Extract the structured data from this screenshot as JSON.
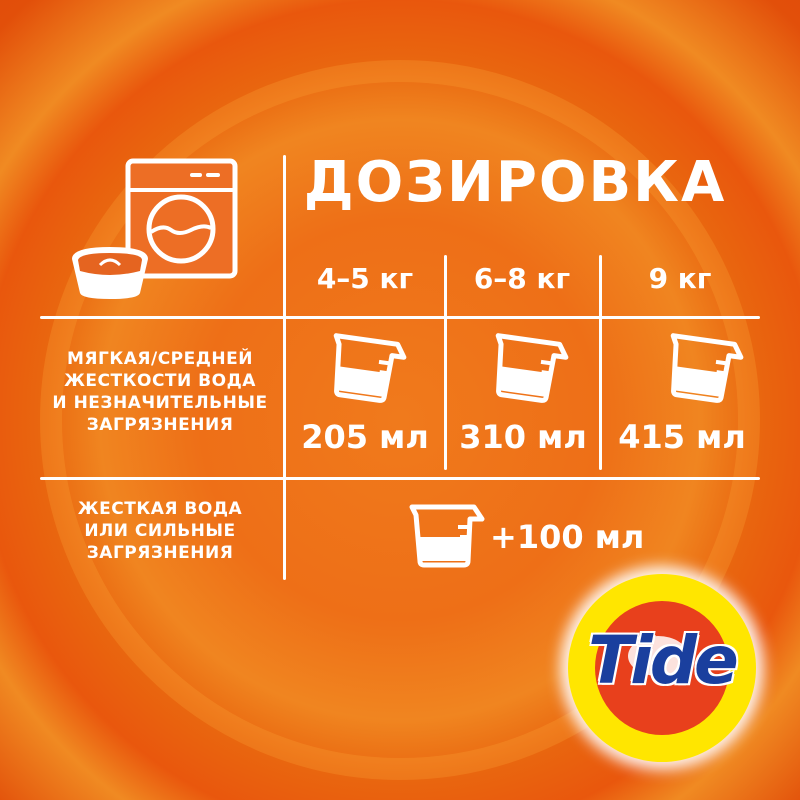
{
  "title": "ДОЗИРОВКА",
  "columns": [
    "4–5 кг",
    "6–8 кг",
    "9 кг"
  ],
  "rows": [
    {
      "label_lines": [
        "МЯГКАЯ/СРЕДНЕЙ",
        "ЖЕСТКОСТИ ВОДА",
        "И НЕЗНАЧИТЕЛЬНЫЕ",
        "ЗАГРЯЗНЕНИЯ"
      ],
      "values": [
        "205 мл",
        "310 мл",
        "415 мл"
      ]
    },
    {
      "label_lines": [
        "ЖЕСТКАЯ ВОДА",
        "ИЛИ СИЛЬНЫЕ",
        "ЗАГРЯЗНЕНИЯ"
      ],
      "value": "+100 мл"
    }
  ],
  "icons": [
    "washing-machine-icon",
    "laundry-basin-icon",
    "measuring-cup-icon"
  ],
  "logo": {
    "text": "Tide",
    "colors": {
      "blue": "#1a3f9e",
      "yellow": "#ffe600",
      "red": "#e8401c"
    }
  },
  "colors": {
    "background": "#ee6f17",
    "foreground": "#ffffff"
  }
}
